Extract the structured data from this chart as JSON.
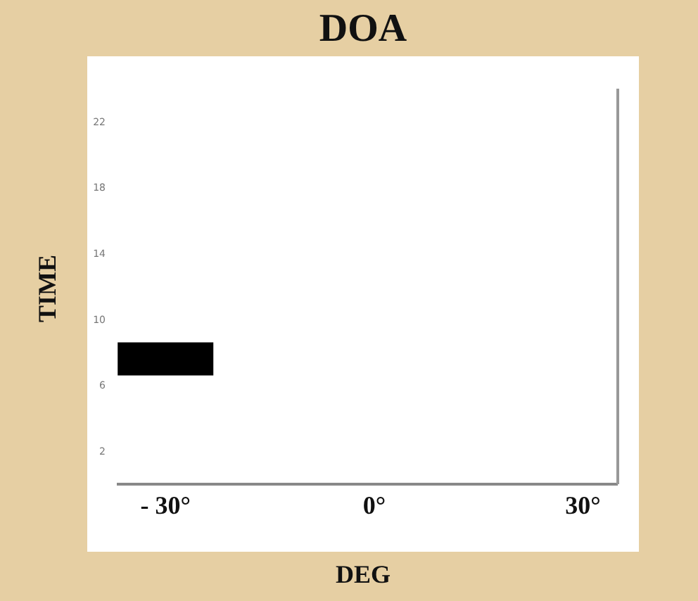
{
  "chart_data": {
    "type": "bar",
    "title": "DOA",
    "xlabel": "DEG",
    "ylabel": "TIME",
    "x": [
      -30
    ],
    "base": [
      6.6
    ],
    "values": [
      2.0
    ],
    "color": "#000000",
    "xlim": [
      -37,
      35
    ],
    "xticks": [
      {
        "value": -30,
        "label": "- 30°"
      },
      {
        "value": 0,
        "label": "0°"
      },
      {
        "value": 30,
        "label": "30°"
      }
    ],
    "ylim": [
      0,
      24
    ],
    "yticks": [
      2,
      6,
      10,
      14,
      18,
      22
    ],
    "grid": false,
    "legend": false
  }
}
